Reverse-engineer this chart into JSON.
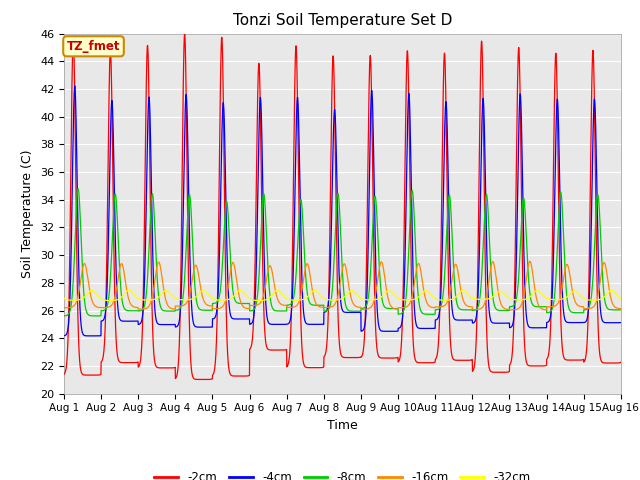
{
  "title": "Tonzi Soil Temperature Set D",
  "xlabel": "Time",
  "ylabel": "Soil Temperature (C)",
  "ylim": [
    20,
    46
  ],
  "xlim": [
    0,
    15
  ],
  "x_tick_labels": [
    "Aug 1",
    "Aug 2",
    "Aug 3",
    "Aug 4",
    "Aug 5",
    "Aug 6",
    "Aug 7",
    "Aug 8",
    "Aug 9",
    "Aug 10",
    "Aug 11",
    "Aug 12",
    "Aug 13",
    "Aug 14",
    "Aug 15",
    "Aug 16"
  ],
  "legend_labels": [
    "-2cm",
    "-4cm",
    "-8cm",
    "-16cm",
    "-32cm"
  ],
  "legend_colors": [
    "#ff0000",
    "#0000ff",
    "#00cc00",
    "#ff8800",
    "#ffff00"
  ],
  "annotation_text": "TZ_fmet",
  "annotation_bg": "#ffffcc",
  "annotation_border": "#cc8800",
  "plot_bg": "#e8e8e8",
  "fig_bg": "#ffffff",
  "series": {
    "colors": [
      "#ff0000",
      "#0000ff",
      "#00cc00",
      "#ff8800",
      "#ffff00"
    ],
    "amplitudes": [
      11.0,
      8.2,
      4.2,
      1.6,
      0.35
    ],
    "means": [
      33.5,
      33.2,
      30.2,
      27.8,
      27.1
    ],
    "phase_shifts": [
      0.0,
      0.04,
      0.13,
      0.3,
      0.5
    ],
    "sharpness": [
      6.0,
      6.0,
      4.0,
      2.5,
      1.5
    ],
    "n_days": 15,
    "pts_per_day": 200
  }
}
